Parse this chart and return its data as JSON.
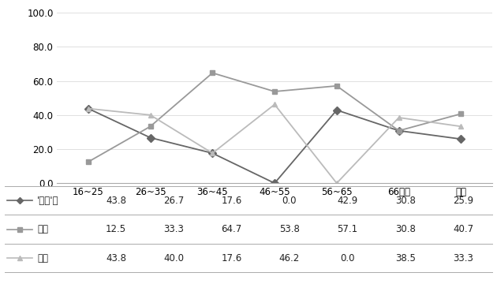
{
  "categories": [
    "16~25",
    "26~35",
    "36~45",
    "46~55",
    "56~65",
    "66이상",
    "전체"
  ],
  "series": [
    {
      "label": "'여보'류",
      "values": [
        43.8,
        26.7,
        17.6,
        0.0,
        42.9,
        30.8,
        25.9
      ],
      "color": "#666666",
      "marker": "D",
      "markersize": 5,
      "linewidth": 1.3
    },
    {
      "label": "기타",
      "values": [
        12.5,
        33.3,
        64.7,
        53.8,
        57.1,
        30.8,
        40.7
      ],
      "color": "#999999",
      "marker": "s",
      "markersize": 5,
      "linewidth": 1.3
    },
    {
      "label": "병용",
      "values": [
        43.8,
        40.0,
        17.6,
        46.2,
        0.0,
        38.5,
        33.3
      ],
      "color": "#bbbbbb",
      "marker": "^",
      "markersize": 5,
      "linewidth": 1.3
    }
  ],
  "legend_table": [
    [
      "'여보'류",
      "43.8",
      "26.7",
      "17.6",
      "0.0",
      "42.9",
      "30.8",
      "25.9"
    ],
    [
      "기타",
      "12.5",
      "33.3",
      "64.7",
      "53.8",
      "57.1",
      "30.8",
      "40.7"
    ],
    [
      "병용",
      "43.8",
      "40.0",
      "17.6",
      "46.2",
      "0.0",
      "38.5",
      "33.3"
    ]
  ],
  "ylim": [
    0,
    100
  ],
  "yticks": [
    0.0,
    20.0,
    40.0,
    60.0,
    80.0,
    100.0
  ],
  "background_color": "#ffffff",
  "grid_color": "#e0e0e0",
  "border_color": "#aaaaaa"
}
